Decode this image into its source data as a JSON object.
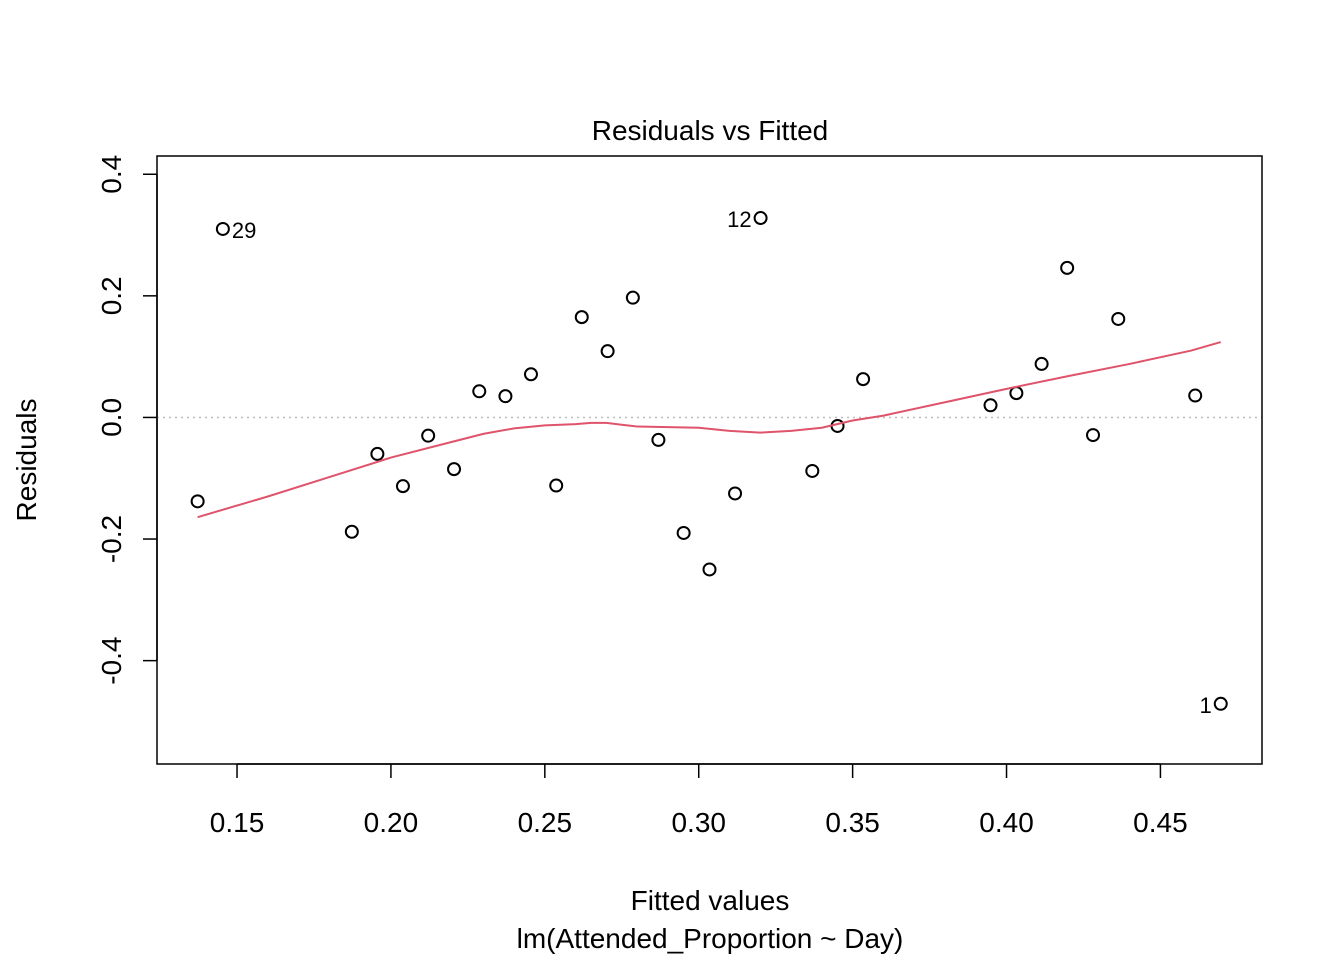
{
  "chart_data": {
    "type": "scatter",
    "title": "Residuals vs Fitted",
    "xlabel": "Fitted values",
    "subtitle": "lm(Attended_Proportion ~ Day)",
    "ylabel": "Residuals",
    "xlim": [
      0.124,
      0.483
    ],
    "ylim": [
      -0.57,
      0.43
    ],
    "xticks": [
      0.15,
      0.2,
      0.25,
      0.3,
      0.35,
      0.4,
      0.45
    ],
    "xtick_labels": [
      "0.15",
      "0.20",
      "0.25",
      "0.30",
      "0.35",
      "0.40",
      "0.45"
    ],
    "yticks": [
      -0.4,
      -0.2,
      0.0,
      0.2,
      0.4
    ],
    "ytick_labels": [
      "-0.4",
      "-0.2",
      "0.0",
      "0.2",
      "0.4"
    ],
    "reference_line_y": 0.0,
    "grid": false,
    "points": {
      "x": [
        0.1372,
        0.1454,
        0.1873,
        0.1956,
        0.2039,
        0.2121,
        0.2205,
        0.2287,
        0.2372,
        0.2455,
        0.2537,
        0.262,
        0.2704,
        0.2786,
        0.2869,
        0.2951,
        0.3035,
        0.3118,
        0.3201,
        0.3369,
        0.3451,
        0.3534,
        0.3948,
        0.4032,
        0.4114,
        0.4197,
        0.4281,
        0.4363,
        0.4613,
        0.4696
      ],
      "y": [
        -0.138,
        0.31,
        -0.188,
        -0.06,
        -0.113,
        -0.03,
        -0.085,
        0.043,
        0.035,
        0.071,
        -0.112,
        0.165,
        0.109,
        0.197,
        -0.037,
        -0.19,
        -0.25,
        -0.125,
        0.328,
        -0.088,
        -0.014,
        0.063,
        0.02,
        0.04,
        0.088,
        0.246,
        -0.029,
        0.162,
        0.036,
        -0.471
      ]
    },
    "point_labels": [
      {
        "text": "29",
        "x": 0.1454,
        "y": 0.31,
        "side": "right"
      },
      {
        "text": "12",
        "x": 0.3201,
        "y": 0.328,
        "side": "left"
      },
      {
        "text": "1",
        "x": 0.4696,
        "y": -0.471,
        "side": "left"
      }
    ],
    "smooth": {
      "x": [
        0.1372,
        0.16,
        0.18,
        0.2,
        0.22,
        0.23,
        0.24,
        0.25,
        0.26,
        0.265,
        0.27,
        0.275,
        0.28,
        0.29,
        0.3,
        0.31,
        0.32,
        0.33,
        0.34,
        0.345,
        0.35,
        0.36,
        0.38,
        0.4,
        0.42,
        0.44,
        0.46,
        0.4696
      ],
      "y": [
        -0.164,
        -0.13,
        -0.098,
        -0.066,
        -0.04,
        -0.027,
        -0.018,
        -0.013,
        -0.011,
        -0.009,
        -0.009,
        -0.012,
        -0.015,
        -0.016,
        -0.017,
        -0.022,
        -0.025,
        -0.022,
        -0.017,
        -0.011,
        -0.005,
        0.003,
        0.025,
        0.047,
        0.068,
        0.088,
        0.11,
        0.124
      ]
    },
    "colors": {
      "points": "#000000",
      "smooth": "#DF536B",
      "reference_line": "#BEBEBE",
      "frame": "#000000"
    }
  }
}
